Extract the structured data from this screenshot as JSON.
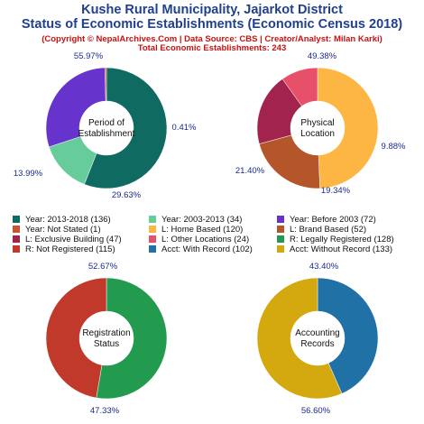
{
  "header": {
    "title_line1": "Kushe Rural Municipality, Jajarkot District",
    "title_line2": "Status of Economic Establishments (Economic Census 2018)",
    "subtitle": "(Copyright © NepalArchives.Com | Data Source: CBS | Creator/Analyst: Milan Karki)",
    "total": "Total Economic Establishments: 243"
  },
  "chart_data": [
    {
      "type": "pie",
      "center_label": [
        "Period of",
        "Establishment"
      ],
      "labels": [
        "Year: 2013-2018",
        "Year: 2003-2013",
        "Year: Before 2003",
        "Year: Not Stated"
      ],
      "values": [
        136,
        34,
        72,
        1
      ],
      "percent_labels": [
        "55.97%",
        "13.99%",
        "29.63%",
        "0.41%"
      ],
      "colors": [
        "#0f6b62",
        "#66cc99",
        "#6633cc",
        "#c8552b"
      ]
    },
    {
      "type": "pie",
      "center_label": [
        "Physical",
        "Location"
      ],
      "labels": [
        "L: Home Based",
        "L: Brand Based",
        "L: Exclusive Building",
        "L: Other Locations"
      ],
      "values": [
        120,
        52,
        47,
        24
      ],
      "percent_labels": [
        "49.38%",
        "21.40%",
        "19.34%",
        "9.88%"
      ],
      "colors": [
        "#fdb643",
        "#b5562a",
        "#a3234f",
        "#e8506a"
      ]
    },
    {
      "type": "pie",
      "center_label": [
        "Registration",
        "Status"
      ],
      "labels": [
        "R: Legally Registered",
        "R: Not Registered"
      ],
      "values": [
        128,
        115
      ],
      "percent_labels": [
        "52.67%",
        "47.33%"
      ],
      "colors": [
        "#229b4f",
        "#c0392b"
      ]
    },
    {
      "type": "pie",
      "center_label": [
        "Accounting",
        "Records"
      ],
      "labels": [
        "Acct: With Record",
        "Acct: Without Record"
      ],
      "values": [
        102,
        133
      ],
      "percent_labels": [
        "43.40%",
        "56.60%"
      ],
      "colors": [
        "#2071a6",
        "#d4a90f"
      ]
    }
  ],
  "legend": [
    {
      "text": "Year: 2013-2018 (136)",
      "color": "#0f6b62"
    },
    {
      "text": "Year: 2003-2013 (34)",
      "color": "#66cc99"
    },
    {
      "text": "Year: Before 2003 (72)",
      "color": "#6633cc"
    },
    {
      "text": "Year: Not Stated (1)",
      "color": "#c8552b"
    },
    {
      "text": "L: Home Based (120)",
      "color": "#fdb643"
    },
    {
      "text": "L: Brand Based (52)",
      "color": "#b5562a"
    },
    {
      "text": "L: Exclusive Building (47)",
      "color": "#a3234f"
    },
    {
      "text": "L: Other Locations (24)",
      "color": "#e8506a"
    },
    {
      "text": "R: Legally Registered (128)",
      "color": "#229b4f"
    },
    {
      "text": "R: Not Registered (115)",
      "color": "#c0392b"
    },
    {
      "text": "Acct: With Record (102)",
      "color": "#2071a6"
    },
    {
      "text": "Acct: Without Record (133)",
      "color": "#d4a90f"
    }
  ]
}
